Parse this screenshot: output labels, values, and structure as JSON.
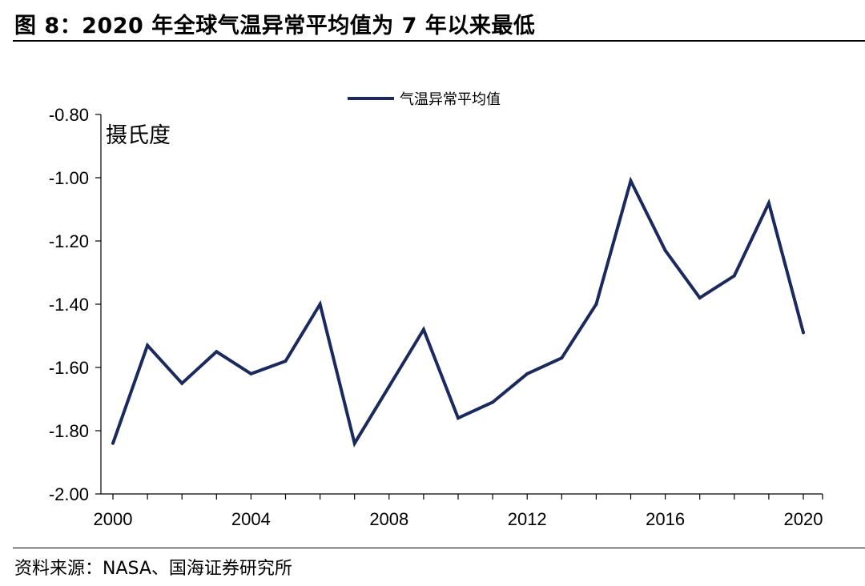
{
  "figure": {
    "title": "图 8：2020 年全球气温异常平均值为 7 年以来最低",
    "source": "资料来源：NASA、国海证券研究所"
  },
  "chart_data": {
    "type": "line",
    "unit_label": "摄氏度",
    "x": [
      2000,
      2001,
      2002,
      2003,
      2004,
      2005,
      2006,
      2007,
      2008,
      2009,
      2010,
      2011,
      2012,
      2013,
      2014,
      2015,
      2016,
      2017,
      2018,
      2019,
      2020
    ],
    "series": [
      {
        "name": "气温异常平均值",
        "color": "#1a2a5e",
        "values": [
          -1.84,
          -1.53,
          -1.65,
          -1.55,
          -1.62,
          -1.58,
          -1.4,
          -1.84,
          -1.66,
          -1.48,
          -1.76,
          -1.71,
          -1.62,
          -1.57,
          -1.4,
          -1.01,
          -1.23,
          -1.38,
          -1.31,
          -1.08,
          -1.49
        ]
      }
    ],
    "xticks": [
      "2000",
      "2004",
      "2008",
      "2012",
      "2016",
      "2020"
    ],
    "yticks": [
      "-0.80",
      "-1.00",
      "-1.20",
      "-1.40",
      "-1.60",
      "-1.80",
      "-2.00"
    ],
    "ylim": [
      -2.0,
      -0.8
    ],
    "xlim": [
      2000,
      2020
    ],
    "legend_position": "top-center",
    "grid": false
  }
}
